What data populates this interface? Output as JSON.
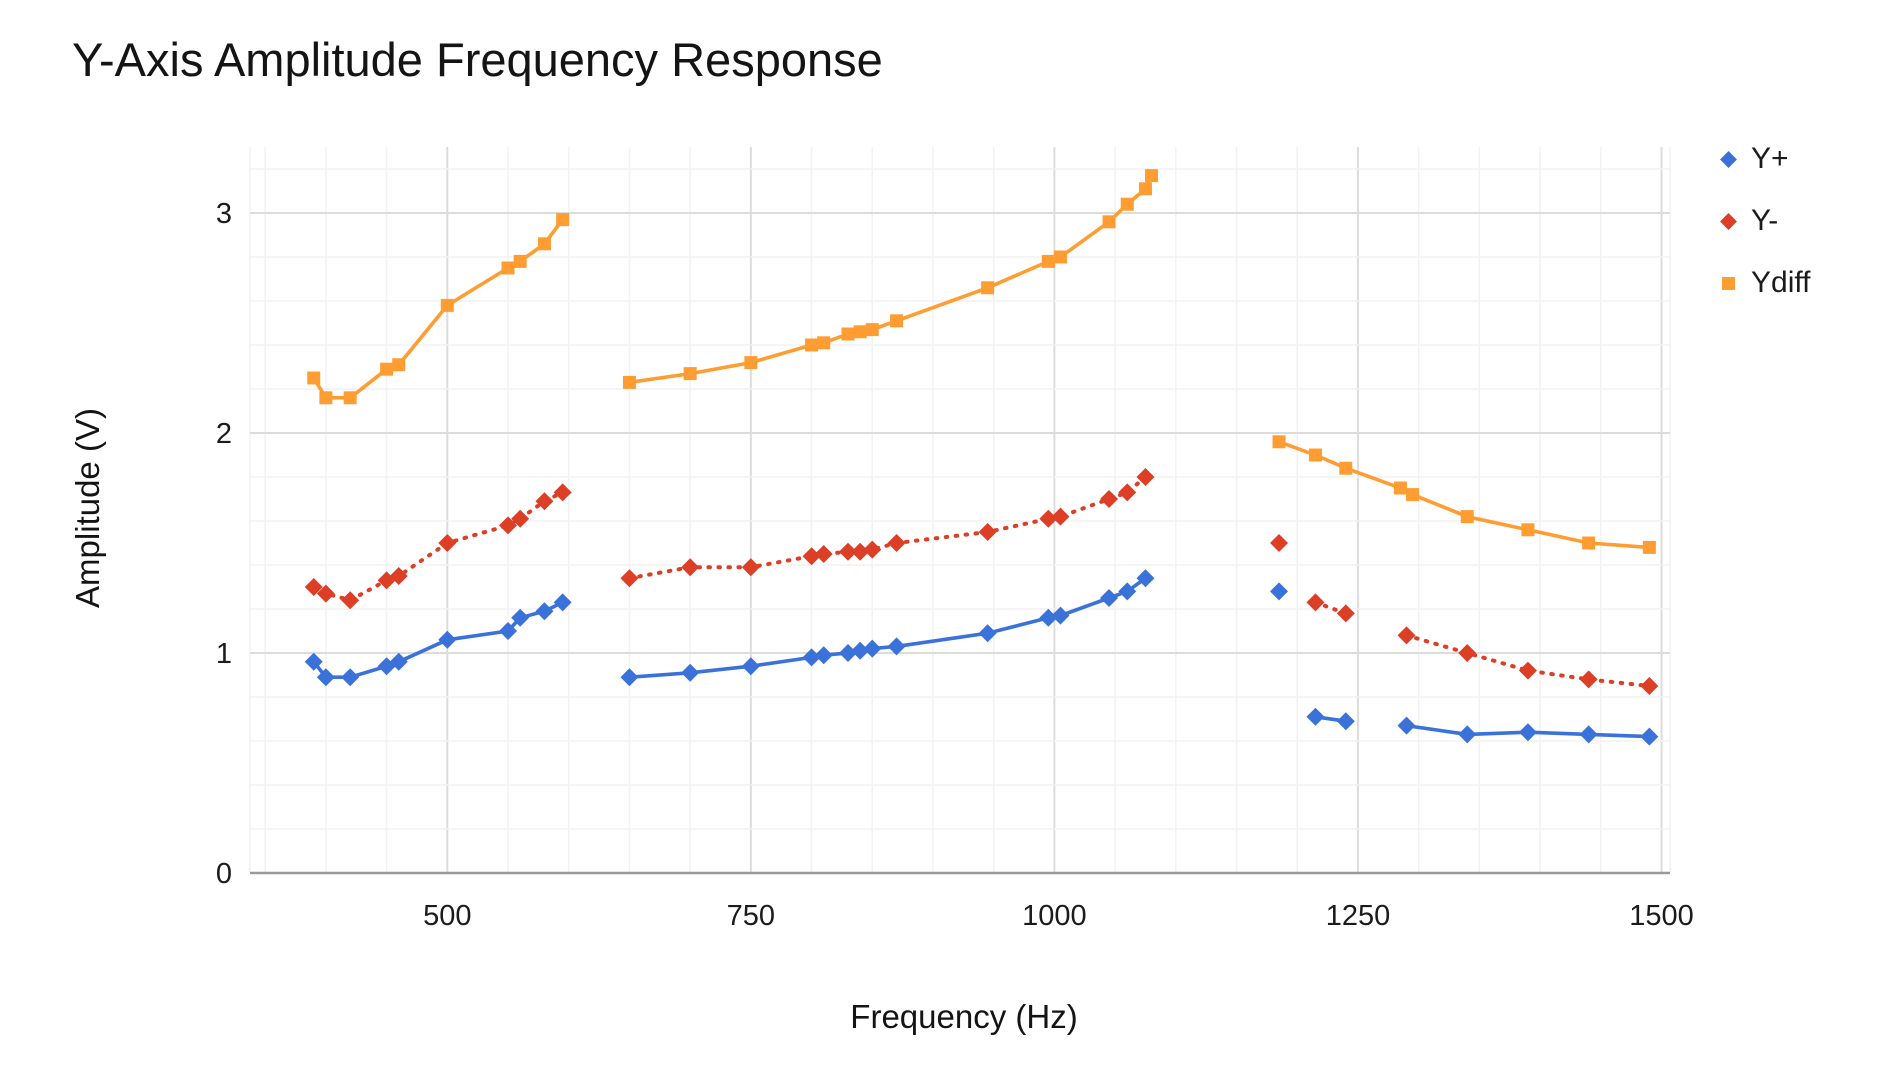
{
  "title": "Y-Axis Amplitude Frequency Response",
  "x_axis": {
    "label": "Frequency (Hz)",
    "tick_labels": [
      "500",
      "750",
      "1000",
      "1250",
      "1500"
    ]
  },
  "y_axis": {
    "label": "Amplitude (V)",
    "tick_labels": [
      "0",
      "1",
      "2",
      "3"
    ]
  },
  "colors": {
    "series_blue": "#3B72D9",
    "series_red": "#DC3E26",
    "series_orange": "#FF9D33",
    "grid_minor": "#f2f2f2",
    "grid_major": "#dcdcdc",
    "axis_line": "#9a9a9a",
    "text": "#1b1b1b"
  },
  "chart_data": {
    "type": "line",
    "title": "Y-Axis Amplitude Frequency Response",
    "xlabel": "Frequency (Hz)",
    "ylabel": "Amplitude (V)",
    "x_range": [
      337.5,
      1507
    ],
    "y_range": [
      0,
      3.3
    ],
    "x_major_ticks": [
      500,
      750,
      1000,
      1250,
      1500
    ],
    "y_major_ticks": [
      0,
      1,
      2,
      3
    ],
    "x_minor_step": 50,
    "y_minor_step": 0.2,
    "grid": "minor+major",
    "legend_position": "right",
    "note": "Each series has gaps; points given as [frequency_hz, amplitude_v]; Ydiff ~= Y+ + Y-",
    "series": [
      {
        "name": "Ydiff",
        "color_key": "series_orange",
        "marker": "square",
        "line_style": "solid",
        "segments": [
          [
            [
              390,
              2.25
            ],
            [
              400,
              2.16
            ],
            [
              420,
              2.16
            ],
            [
              450,
              2.29
            ],
            [
              460,
              2.31
            ],
            [
              500,
              2.58
            ],
            [
              550,
              2.75
            ],
            [
              560,
              2.78
            ],
            [
              580,
              2.86
            ],
            [
              595,
              2.97
            ]
          ],
          [
            [
              650,
              2.23
            ],
            [
              700,
              2.27
            ],
            [
              750,
              2.32
            ],
            [
              800,
              2.4
            ],
            [
              810,
              2.41
            ],
            [
              830,
              2.45
            ],
            [
              840,
              2.46
            ],
            [
              850,
              2.47
            ],
            [
              870,
              2.51
            ],
            [
              945,
              2.66
            ],
            [
              995,
              2.78
            ],
            [
              1005,
              2.8
            ],
            [
              1045,
              2.96
            ],
            [
              1060,
              3.04
            ],
            [
              1075,
              3.11
            ],
            [
              1080,
              3.17
            ]
          ],
          [
            [
              1185,
              1.96
            ],
            [
              1215,
              1.9
            ],
            [
              1240,
              1.84
            ],
            [
              1285,
              1.75
            ],
            [
              1295,
              1.72
            ],
            [
              1340,
              1.62
            ],
            [
              1390,
              1.56
            ],
            [
              1440,
              1.5
            ],
            [
              1490,
              1.48
            ]
          ]
        ]
      },
      {
        "name": "Y-",
        "color_key": "series_red",
        "marker": "diamond",
        "line_style": "dotted",
        "segments": [
          [
            [
              390,
              1.3
            ],
            [
              400,
              1.27
            ],
            [
              420,
              1.24
            ],
            [
              450,
              1.33
            ],
            [
              460,
              1.35
            ],
            [
              500,
              1.5
            ],
            [
              550,
              1.58
            ],
            [
              560,
              1.61
            ],
            [
              580,
              1.69
            ],
            [
              595,
              1.73
            ]
          ],
          [
            [
              650,
              1.34
            ],
            [
              700,
              1.39
            ],
            [
              750,
              1.39
            ],
            [
              800,
              1.44
            ],
            [
              810,
              1.45
            ],
            [
              830,
              1.46
            ],
            [
              840,
              1.46
            ],
            [
              850,
              1.47
            ],
            [
              870,
              1.5
            ],
            [
              945,
              1.55
            ],
            [
              995,
              1.61
            ],
            [
              1005,
              1.62
            ],
            [
              1045,
              1.7
            ],
            [
              1060,
              1.73
            ],
            [
              1075,
              1.8
            ]
          ],
          [
            [
              1185,
              1.5
            ]
          ],
          [
            [
              1215,
              1.23
            ],
            [
              1240,
              1.18
            ]
          ],
          [
            [
              1290,
              1.08
            ],
            [
              1340,
              1.0
            ],
            [
              1390,
              0.92
            ],
            [
              1440,
              0.88
            ],
            [
              1490,
              0.85
            ]
          ]
        ]
      },
      {
        "name": "Y+",
        "color_key": "series_blue",
        "marker": "diamond",
        "line_style": "solid",
        "segments": [
          [
            [
              390,
              0.96
            ],
            [
              400,
              0.89
            ],
            [
              420,
              0.89
            ],
            [
              450,
              0.94
            ],
            [
              460,
              0.96
            ],
            [
              500,
              1.06
            ],
            [
              550,
              1.1
            ],
            [
              560,
              1.16
            ],
            [
              580,
              1.19
            ],
            [
              595,
              1.23
            ]
          ],
          [
            [
              650,
              0.89
            ],
            [
              700,
              0.91
            ],
            [
              750,
              0.94
            ],
            [
              800,
              0.98
            ],
            [
              810,
              0.99
            ],
            [
              830,
              1.0
            ],
            [
              840,
              1.01
            ],
            [
              850,
              1.02
            ],
            [
              870,
              1.03
            ],
            [
              945,
              1.09
            ],
            [
              995,
              1.16
            ],
            [
              1005,
              1.17
            ],
            [
              1045,
              1.25
            ],
            [
              1060,
              1.28
            ],
            [
              1075,
              1.34
            ]
          ],
          [
            [
              1185,
              1.28
            ]
          ],
          [
            [
              1215,
              0.71
            ],
            [
              1240,
              0.69
            ]
          ],
          [
            [
              1290,
              0.67
            ],
            [
              1340,
              0.63
            ],
            [
              1390,
              0.64
            ],
            [
              1440,
              0.63
            ],
            [
              1490,
              0.62
            ]
          ]
        ]
      }
    ]
  },
  "legend": {
    "items": [
      {
        "label": "Y+",
        "color_key": "series_blue",
        "marker": "diamond"
      },
      {
        "label": "Y-",
        "color_key": "series_red",
        "marker": "diamond"
      },
      {
        "label": "Ydiff",
        "color_key": "series_orange",
        "marker": "square"
      }
    ]
  }
}
